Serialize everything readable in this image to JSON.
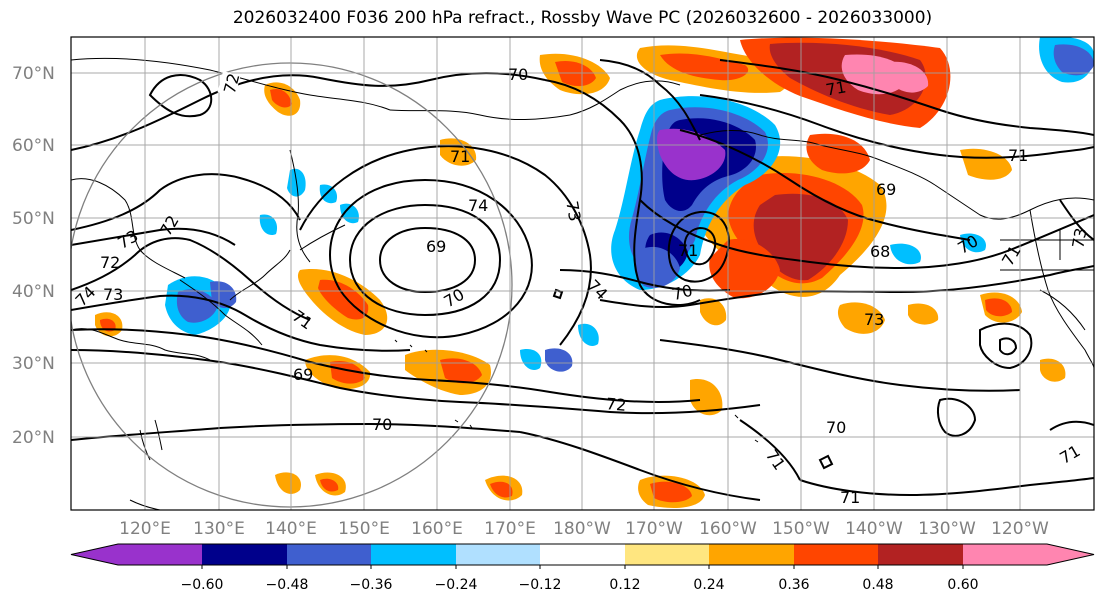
{
  "title": "2026032400 F036 200 hPa refract., Rossby Wave PC (2026032600 - 2026033000)",
  "lat_labels": [
    "70°N",
    "60°N",
    "50°N",
    "40°N",
    "30°N",
    "20°N"
  ],
  "lon_labels": [
    "120°E",
    "130°E",
    "140°E",
    "150°E",
    "160°E",
    "170°E",
    "180°W",
    "170°W",
    "160°W",
    "150°W",
    "140°W",
    "130°W",
    "120°W"
  ],
  "contour_labels": [
    "72",
    "70",
    "71",
    "74",
    "73",
    "69",
    "70",
    "71",
    "74",
    "73",
    "72",
    "72",
    "73",
    "74",
    "71",
    "71",
    "69",
    "69",
    "70",
    "72",
    "70",
    "71",
    "68",
    "70",
    "71",
    "73",
    "73",
    "71",
    "70",
    "71",
    "71"
  ],
  "colorbar": {
    "ticks": [
      "−0.60",
      "−0.48",
      "−0.36",
      "−0.24",
      "−0.12",
      "0.12",
      "0.24",
      "0.36",
      "0.48",
      "0.60"
    ],
    "colors": [
      "#9932cc",
      "#00008b",
      "#3f5fcf",
      "#00bfff",
      "#b0e0ff",
      "#ffffff",
      "#ffe680",
      "#ffa500",
      "#ff4500",
      "#b22222",
      "#ff85b0"
    ]
  },
  "colors": {
    "contour": "#000000",
    "coast": "#000000",
    "grid": "#a0a0a0",
    "axis_labels": "#808080"
  }
}
